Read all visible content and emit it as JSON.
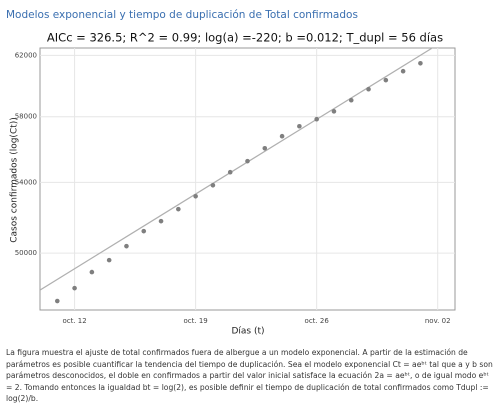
{
  "page_title": "Modelos exponencial y tiempo de duplicación de Total confirmados",
  "chart_data": {
    "type": "scatter",
    "title": "AICc = 326.5; R^2 = 0.99; log(a) =-220; b =0.012; T_dupl = 56 días",
    "x_label": "Días (t)",
    "y_label": "Casos confirmados (log(Ct))",
    "log_y": true,
    "grid": true,
    "x": [
      "10-11",
      "10-12",
      "10-13",
      "10-14",
      "10-15",
      "10-16",
      "10-17",
      "10-18",
      "10-19",
      "10-20",
      "10-21",
      "10-22",
      "10-23",
      "10-24",
      "10-25",
      "10-26",
      "10-27",
      "10-28",
      "10-29",
      "10-30",
      "10-31",
      "11-01"
    ],
    "values": [
      47460,
      48130,
      48980,
      49620,
      50380,
      51210,
      51770,
      52450,
      53190,
      53830,
      54600,
      55260,
      56040,
      56780,
      57400,
      57840,
      58340,
      59050,
      59760,
      60350,
      60940,
      61470
    ],
    "color": "#7f7f7f",
    "trend_line": {
      "x": [
        "10-10",
        "11-02"
      ],
      "values": [
        48030,
        62730
      ],
      "color": "#b0b0b0"
    },
    "xlim": [
      "10-10",
      "11-03"
    ],
    "ylim": [
      47000,
      62500
    ],
    "xticks": [
      {
        "value": "10-12",
        "label": "oct. 12"
      },
      {
        "value": "10-19",
        "label": "oct. 19"
      },
      {
        "value": "10-26",
        "label": "oct. 26"
      },
      {
        "value": "11-02",
        "label": "nov. 02"
      }
    ],
    "yticks": [
      50000,
      54000,
      58000,
      62000
    ]
  },
  "caption": "La figura muestra el ajuste de total confirmados fuera de albergue a un modelo exponencial. A partir de la estimación de parámetros es posible cuantificar la tendencia del tiempo de duplicación. Sea el modelo exponencial Ct = aeᵇᵗ tal que a y b son parámetros desconocidos, el doble en confirmados a partir del valor inicial satisface la ecuación 2a = aeᵇᵗ, o de igual modo eᵇᵗ = 2. Tomando entonces la igualdad bt = log(2), es posible definir el tiempo de duplicación de total confirmados como Tdupl := log(2)/b."
}
